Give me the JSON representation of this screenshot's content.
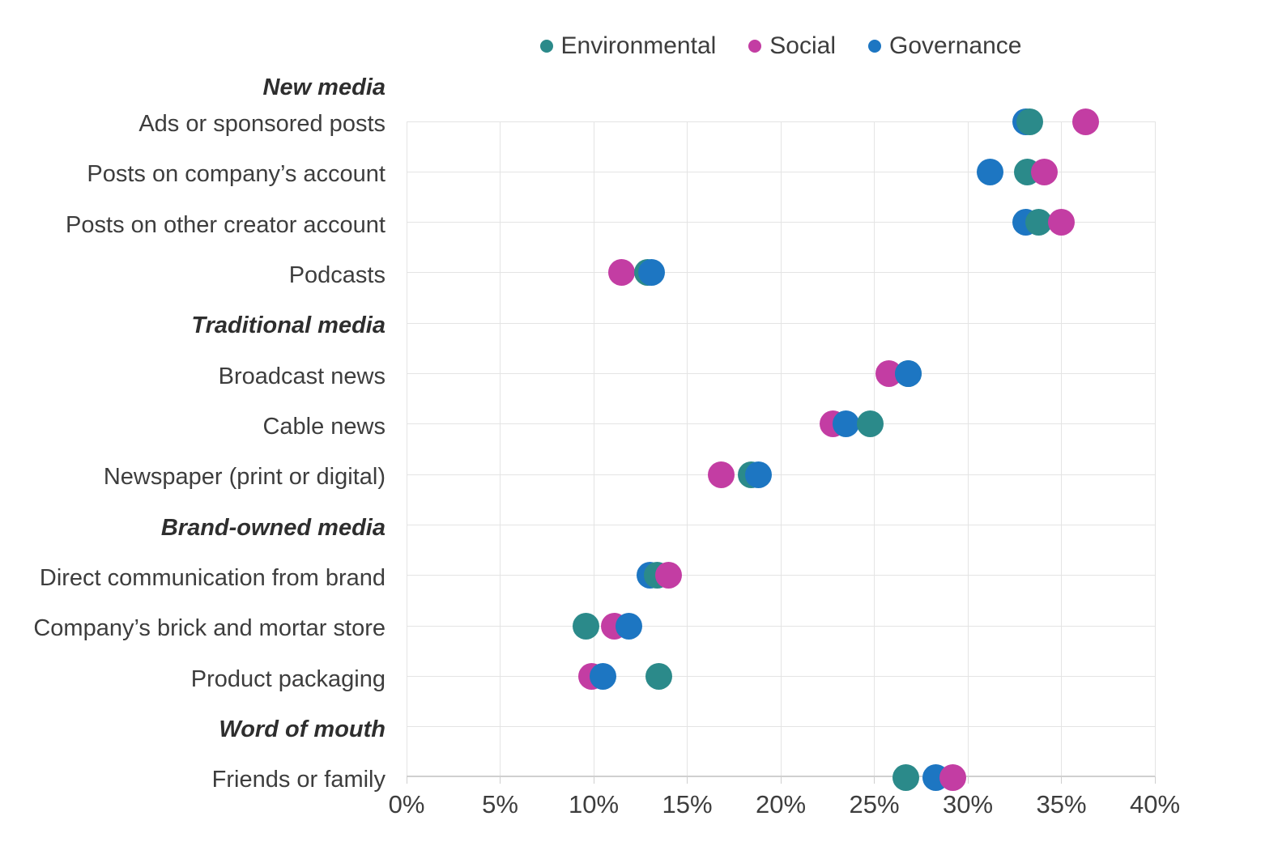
{
  "chart_data": {
    "type": "scatter",
    "title": "",
    "xlabel": "",
    "ylabel": "",
    "grid": true,
    "legend_position": "top-center",
    "x_axis": {
      "min": 0,
      "max": 40,
      "tick_step": 5,
      "unit": "%",
      "tick_labels": [
        "0%",
        "5%",
        "10%",
        "15%",
        "20%",
        "25%",
        "30%",
        "35%",
        "40%"
      ]
    },
    "series_names": [
      "Environmental",
      "Social",
      "Governance"
    ],
    "colors": {
      "Environmental": "#2b8a8a",
      "Social": "#c33da3",
      "Governance": "#1d76c2"
    },
    "rows": [
      {
        "kind": "group_header",
        "label": "New media"
      },
      {
        "kind": "data",
        "label": "Ads or sponsored posts",
        "values": {
          "Environmental": 33.3,
          "Social": 36.3,
          "Governance": 33.1
        }
      },
      {
        "kind": "data",
        "label": "Posts on company’s account",
        "values": {
          "Environmental": 33.2,
          "Social": 34.1,
          "Governance": 31.2
        }
      },
      {
        "kind": "data",
        "label": "Posts on other creator account",
        "values": {
          "Environmental": 33.8,
          "Social": 35.0,
          "Governance": 33.1
        }
      },
      {
        "kind": "data",
        "label": "Podcasts",
        "values": {
          "Environmental": 12.9,
          "Social": 11.5,
          "Governance": 13.1
        }
      },
      {
        "kind": "group_header",
        "label": "Traditional media"
      },
      {
        "kind": "data",
        "label": "Broadcast news",
        "values": {
          "Environmental": 26.8,
          "Social": 25.8,
          "Governance": 26.8
        }
      },
      {
        "kind": "data",
        "label": "Cable news",
        "values": {
          "Environmental": 24.8,
          "Social": 22.8,
          "Governance": 23.5
        }
      },
      {
        "kind": "data",
        "label": "Newspaper (print or digital)",
        "values": {
          "Environmental": 18.4,
          "Social": 16.8,
          "Governance": 18.8
        }
      },
      {
        "kind": "group_header",
        "label": "Brand-owned media"
      },
      {
        "kind": "data",
        "label": "Direct communication from brand",
        "values": {
          "Environmental": 13.4,
          "Social": 14.0,
          "Governance": 13.0
        }
      },
      {
        "kind": "data",
        "label": "Company’s brick and mortar store",
        "values": {
          "Environmental": 9.6,
          "Social": 11.1,
          "Governance": 11.9
        }
      },
      {
        "kind": "data",
        "label": "Product packaging",
        "values": {
          "Environmental": 13.5,
          "Social": 9.9,
          "Governance": 10.5
        }
      },
      {
        "kind": "group_header",
        "label": "Word of mouth"
      },
      {
        "kind": "data",
        "label": "Friends or family",
        "values": {
          "Environmental": 26.7,
          "Social": 29.2,
          "Governance": 28.3
        }
      }
    ],
    "style": {
      "grid_color": "#e4e4e4",
      "axis_color": "#cfcfcf",
      "text_color": "#3d3d3d",
      "header_text_color": "#2e2e2e"
    }
  }
}
